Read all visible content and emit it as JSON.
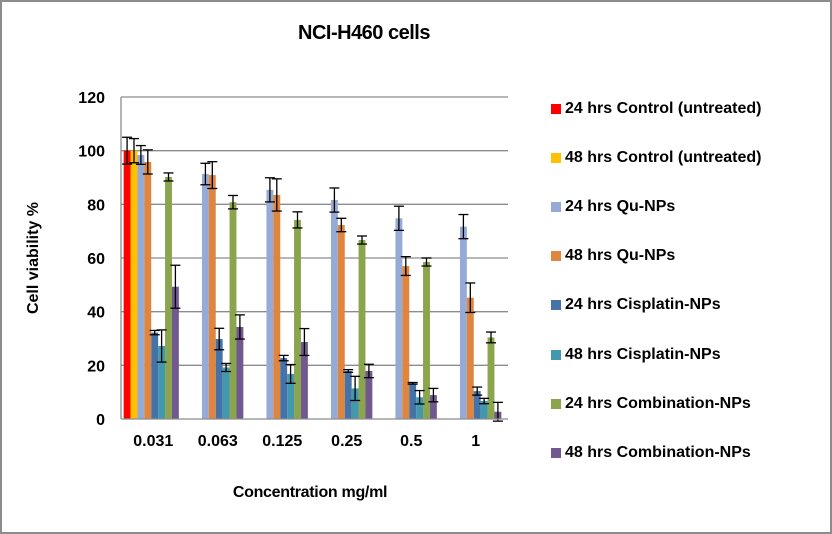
{
  "chart_data": {
    "type": "bar",
    "title": "NCI-H460 cells",
    "xlabel": "Concentration mg/ml",
    "ylabel": "Cell viability %",
    "ylim": [
      0,
      120
    ],
    "yticks": [
      0,
      20,
      40,
      60,
      80,
      100,
      120
    ],
    "grid": true,
    "legend_position": "right",
    "categories": [
      "0.031",
      "0.063",
      "0.125",
      "0.25",
      "0.5",
      "1"
    ],
    "series": [
      {
        "name": "24 hrs Control (untreated)",
        "color": "#ff0000",
        "values": [
          100,
          null,
          null,
          null,
          null,
          null
        ],
        "errors": [
          5,
          null,
          null,
          null,
          null,
          null
        ]
      },
      {
        "name": "48 hrs Control (untreated)",
        "color": "#ffc000",
        "values": [
          100,
          null,
          null,
          null,
          null,
          null
        ],
        "errors": [
          4.5,
          null,
          null,
          null,
          null,
          null
        ]
      },
      {
        "name": "24 hrs Qu-NPs",
        "color": "#95abd5",
        "values": [
          98.4,
          91.3,
          85.4,
          81.6,
          74.8,
          71.7
        ],
        "errors": [
          3.5,
          4,
          4.5,
          4.5,
          4.5,
          4.5
        ]
      },
      {
        "name": "48 hrs Qu-NPs",
        "color": "#e0853e",
        "values": [
          95.8,
          90.9,
          83.5,
          72.3,
          57.0,
          45.2
        ],
        "errors": [
          4.5,
          5,
          6,
          2.5,
          3.5,
          5.5
        ]
      },
      {
        "name": "24 hrs Cisplatin-NPs",
        "color": "#4572a7",
        "values": [
          32.2,
          29.8,
          22.7,
          17.9,
          13.3,
          10.4
        ],
        "errors": [
          0.8,
          4,
          1,
          0.5,
          0.3,
          1.5
        ]
      },
      {
        "name": "48 hrs Cisplatin-NPs",
        "color": "#4198af",
        "values": [
          27.2,
          19.2,
          16.8,
          11.4,
          8.1,
          6.7
        ],
        "errors": [
          6,
          1.5,
          3.5,
          4.5,
          2.5,
          1
        ]
      },
      {
        "name": "24 hrs Combination-NPs",
        "color": "#8ba54f",
        "values": [
          90.2,
          80.8,
          74.2,
          66.7,
          58.5,
          30.4
        ],
        "errors": [
          1.5,
          2.5,
          3,
          1.5,
          1.5,
          2
        ]
      },
      {
        "name": "48 hrs Combination-NPs",
        "color": "#71588f",
        "values": [
          49.3,
          34.3,
          28.7,
          17.9,
          8.9,
          2.7
        ],
        "errors": [
          8,
          4.5,
          5,
          2.5,
          2.5,
          3.5
        ]
      }
    ]
  }
}
